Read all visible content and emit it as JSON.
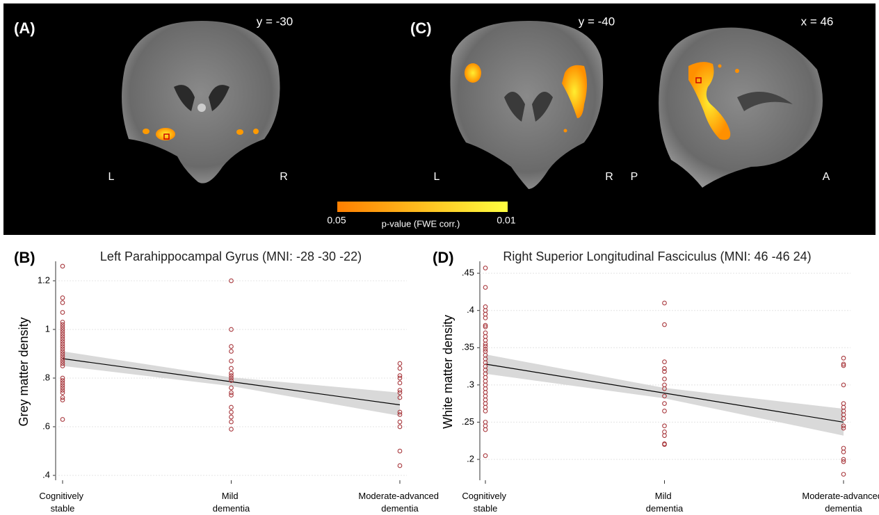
{
  "brain_panel": {
    "panel_a": "(A)",
    "panel_c": "(C)",
    "slice_a": "y = -30",
    "slice_c1": "y = -40",
    "slice_c2": "x = 46",
    "a_left": "L",
    "a_right": "R",
    "c_left": "L",
    "c_right": "R",
    "c_post": "P",
    "c_ant": "A",
    "colorbar_min": "0.05",
    "colorbar_max": "0.01",
    "colorbar_label": "p-value (FWE corr.)"
  },
  "chart_data": [
    {
      "type": "scatter",
      "panel": "(B)",
      "title": "Left Parahippocampal Gyrus (MNI: -28 -30 -22)",
      "y_label": "Grey matter density",
      "categories": [
        "Cognitively stable",
        "Mild dementia",
        "Moderate-advanced dementia"
      ],
      "values": [
        [
          1.26,
          1.13,
          1.11,
          1.07,
          1.03,
          1.02,
          1.01,
          1.0,
          0.99,
          0.98,
          0.97,
          0.96,
          0.95,
          0.94,
          0.93,
          0.92,
          0.91,
          0.9,
          0.89,
          0.88,
          0.87,
          0.86,
          0.85,
          0.8,
          0.79,
          0.78,
          0.77,
          0.76,
          0.75,
          0.74,
          0.72,
          0.71,
          0.63
        ],
        [
          1.2,
          1.0,
          0.93,
          0.91,
          0.87,
          0.84,
          0.82,
          0.81,
          0.8,
          0.79,
          0.76,
          0.74,
          0.73,
          0.68,
          0.66,
          0.64,
          0.62,
          0.59
        ],
        [
          0.86,
          0.84,
          0.81,
          0.8,
          0.78,
          0.75,
          0.74,
          0.72,
          0.66,
          0.65,
          0.62,
          0.6,
          0.5,
          0.44
        ]
      ],
      "color": "#a8383d",
      "fit": {
        "values": [
          0.88,
          0.785,
          0.69
        ],
        "ci_low": [
          0.85,
          0.767,
          0.645
        ],
        "ci_high": [
          0.91,
          0.803,
          0.74
        ],
        "color": "#000000",
        "band_color": "#d9d9d9"
      },
      "ylim": [
        0.38,
        1.28
      ],
      "yticks": [
        {
          "value": 0.4,
          "label": ".4"
        },
        {
          "value": 0.6,
          "label": ".6"
        },
        {
          "value": 0.8,
          "label": ".8"
        },
        1,
        1.2
      ],
      "grid": true
    },
    {
      "type": "scatter",
      "panel": "(D)",
      "title": "Right Superior Longitudinal Fasciculus (MNI: 46 -46 24)",
      "y_label": "White matter density",
      "categories": [
        "Cognitively stable",
        "Mild dementia",
        "Moderate-advanced dementia"
      ],
      "values": [
        [
          0.457,
          0.431,
          0.405,
          0.4,
          0.395,
          0.39,
          0.38,
          0.378,
          0.37,
          0.365,
          0.36,
          0.355,
          0.352,
          0.348,
          0.345,
          0.34,
          0.335,
          0.33,
          0.325,
          0.32,
          0.315,
          0.31,
          0.305,
          0.3,
          0.295,
          0.29,
          0.285,
          0.28,
          0.275,
          0.27,
          0.265,
          0.25,
          0.245,
          0.24,
          0.205
        ],
        [
          0.41,
          0.381,
          0.331,
          0.322,
          0.318,
          0.308,
          0.3,
          0.295,
          0.285,
          0.275,
          0.265,
          0.245,
          0.237,
          0.232,
          0.221,
          0.22
        ],
        [
          0.336,
          0.328,
          0.326,
          0.3,
          0.275,
          0.27,
          0.265,
          0.26,
          0.255,
          0.245,
          0.242,
          0.215,
          0.21,
          0.2,
          0.197,
          0.18
        ]
      ],
      "color": "#a8383d",
      "fit": {
        "values": [
          0.328,
          0.289,
          0.25
        ],
        "ci_low": [
          0.315,
          0.282,
          0.232
        ],
        "ci_high": [
          0.341,
          0.296,
          0.268
        ],
        "color": "#000000",
        "band_color": "#d9d9d9"
      },
      "ylim": [
        0.172,
        0.466
      ],
      "yticks": [
        {
          "value": 0.2,
          "label": ".2"
        },
        {
          "value": 0.25,
          "label": ".25"
        },
        {
          "value": 0.3,
          "label": ".3"
        },
        {
          "value": 0.35,
          "label": ".35"
        },
        {
          "value": 0.4,
          "label": ".4"
        },
        {
          "value": 0.45,
          "label": ".45"
        }
      ],
      "grid": true
    }
  ]
}
